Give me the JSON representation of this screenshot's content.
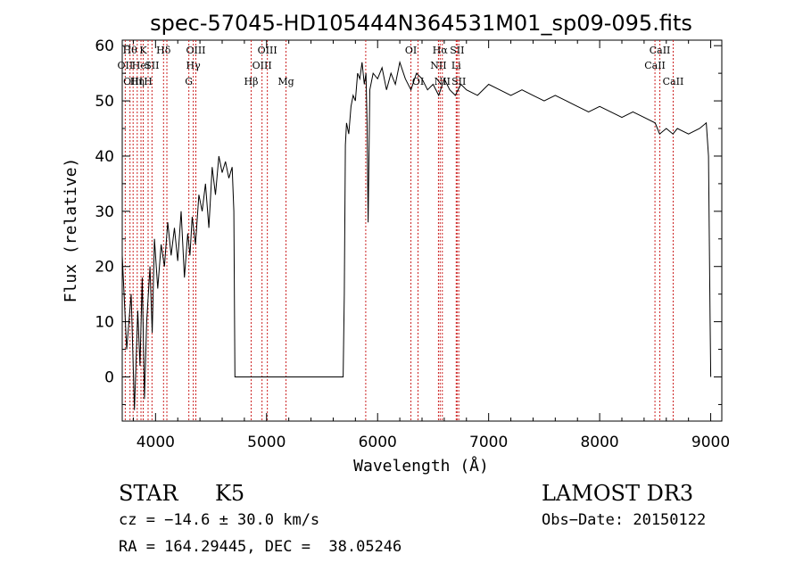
{
  "chart_data": {
    "type": "line",
    "title": "spec-57045-HD105444N364531M01_sp09-095.fits",
    "xlabel": "Wavelength (Å)",
    "ylabel": "Flux (relative)",
    "xlim": [
      3700,
      9100
    ],
    "ylim": [
      -8,
      61
    ],
    "xticks": [
      4000,
      5000,
      6000,
      7000,
      8000,
      9000
    ],
    "yticks": [
      0,
      10,
      20,
      30,
      40,
      50,
      60
    ],
    "grid": false,
    "line_color": "#000000",
    "marker_color": "#cc2222",
    "series": [
      {
        "x": [
          3700,
          3740,
          3780,
          3810,
          3840,
          3860,
          3880,
          3900,
          3920,
          3950,
          3970,
          3990,
          4020,
          4050,
          4080,
          4110,
          4140,
          4170,
          4200,
          4230,
          4260,
          4290,
          4310,
          4330,
          4360,
          4390,
          4420,
          4450,
          4480,
          4510,
          4540,
          4570,
          4600,
          4630,
          4660,
          4690,
          4705,
          4715,
          5690,
          5700,
          5710,
          5720,
          5740,
          5760,
          5780,
          5800,
          5820,
          5840,
          5860,
          5880,
          5895,
          5905,
          5915,
          5930,
          5960,
          6000,
          6040,
          6080,
          6120,
          6160,
          6200,
          6250,
          6300,
          6350,
          6400,
          6450,
          6500,
          6550,
          6600,
          6650,
          6700,
          6750,
          6800,
          6900,
          7000,
          7100,
          7200,
          7300,
          7400,
          7500,
          7600,
          7700,
          7800,
          7900,
          8000,
          8100,
          8200,
          8300,
          8400,
          8500,
          8540,
          8600,
          8660,
          8700,
          8800,
          8900,
          8960,
          8980,
          8995,
          9000
        ],
        "y": [
          22,
          5,
          15,
          -6,
          12,
          2,
          18,
          -4,
          10,
          20,
          8,
          25,
          16,
          24,
          20,
          28,
          22,
          27,
          21,
          30,
          18,
          26,
          22,
          29,
          24,
          33,
          30,
          35,
          27,
          38,
          33,
          40,
          37,
          39,
          36,
          38,
          30,
          0,
          0,
          15,
          42,
          46,
          44,
          49,
          51,
          50,
          55,
          54,
          57,
          53,
          55,
          46,
          28,
          52,
          55,
          54,
          56,
          52,
          55,
          53,
          57,
          54,
          52,
          55,
          54,
          52,
          53,
          51,
          54,
          52,
          51,
          53,
          52,
          51,
          53,
          52,
          51,
          52,
          51,
          50,
          51,
          50,
          49,
          48,
          49,
          48,
          47,
          48,
          47,
          46,
          44,
          45,
          44,
          45,
          44,
          45,
          46,
          40,
          10,
          0
        ]
      }
    ],
    "markers": [
      {
        "x": 3727,
        "label": "OII",
        "row": 1
      },
      {
        "x": 3770,
        "label": "Hθ",
        "row": 0
      },
      {
        "x": 3798,
        "label": "OIII",
        "row": 2
      },
      {
        "x": 3835,
        "label": "Hη",
        "row": 2
      },
      {
        "x": 3869,
        "label": "HeI",
        "row": 1
      },
      {
        "x": 3889,
        "label": "K",
        "row": 0
      },
      {
        "x": 3933,
        "label": "H",
        "row": 2
      },
      {
        "x": 3968,
        "label": "SII",
        "row": 1
      },
      {
        "x": 4072,
        "label": "Hδ",
        "row": 0
      },
      {
        "x": 4102,
        "label": "",
        "row": 0
      },
      {
        "x": 4300,
        "label": "G",
        "row": 2
      },
      {
        "x": 4340,
        "label": "Hγ",
        "row": 1
      },
      {
        "x": 4363,
        "label": "OIII",
        "row": 0
      },
      {
        "x": 4861,
        "label": "Hβ",
        "row": 2
      },
      {
        "x": 4959,
        "label": "OIII",
        "row": 1
      },
      {
        "x": 5007,
        "label": "OIII",
        "row": 0
      },
      {
        "x": 5175,
        "label": "Mg",
        "row": 2
      },
      {
        "x": 5893,
        "label": "",
        "row": 0
      },
      {
        "x": 6300,
        "label": "OI",
        "row": 0
      },
      {
        "x": 6364,
        "label": "OI",
        "row": 2
      },
      {
        "x": 6548,
        "label": "NII",
        "row": 1
      },
      {
        "x": 6563,
        "label": "Hα",
        "row": 0
      },
      {
        "x": 6583,
        "label": "NII",
        "row": 2
      },
      {
        "x": 6708,
        "label": "Li",
        "row": 1
      },
      {
        "x": 6716,
        "label": "SII",
        "row": 0
      },
      {
        "x": 6731,
        "label": "SII",
        "row": 2
      },
      {
        "x": 8498,
        "label": "CaII",
        "row": 1
      },
      {
        "x": 8542,
        "label": "CaII",
        "row": 0
      },
      {
        "x": 8662,
        "label": "CaII",
        "row": 2
      }
    ]
  },
  "info": {
    "object_class": "STAR",
    "subclass": "K5",
    "cz": "cz = −14.6 ± 30.0 km/s",
    "radec": "RA = 164.29445, DEC =  38.05246",
    "survey": "LAMOST DR3",
    "obs_date": "Obs−Date: 20150122"
  }
}
